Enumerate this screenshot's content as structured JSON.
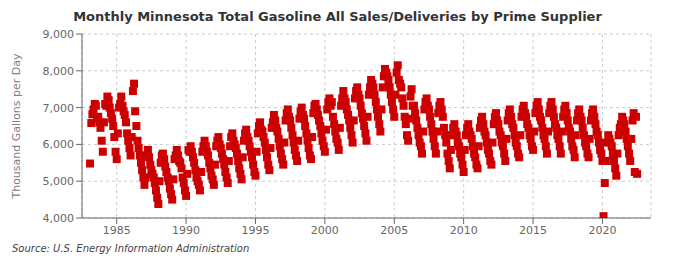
{
  "chart_data": {
    "type": "scatter",
    "title": "Monthly Minnesota Total Gasoline All Sales/Deliveries by Prime Supplier",
    "y_label": "Thousand Gallons per Day",
    "annotations": [
      "Source: U.S. Energy Information Administration"
    ],
    "color": "#CC0000",
    "marker": "square",
    "grid": true,
    "xlim": [
      1982.5,
      2023.5
    ],
    "xticks": [
      1985,
      1990,
      1995,
      2000,
      2005,
      2010,
      2015,
      2020
    ],
    "ylim": [
      4000,
      9000
    ],
    "yticks": [
      {
        "value": 4000,
        "label": "4,000"
      },
      {
        "value": 5000,
        "label": "5,000"
      },
      {
        "value": 6000,
        "label": "6,000"
      },
      {
        "value": 7000,
        "label": "7,000"
      },
      {
        "value": 8000,
        "label": "8,000"
      },
      {
        "value": 9000,
        "label": "9,000"
      }
    ],
    "x": [
      1983.08,
      1983.17,
      1983.25,
      1983.33,
      1983.42,
      1983.5,
      1983.58,
      1983.67,
      1983.75,
      1983.83,
      1983.92,
      1984.0,
      1984.08,
      1984.17,
      1984.25,
      1984.33,
      1984.42,
      1984.5,
      1984.58,
      1984.67,
      1984.75,
      1984.83,
      1984.92,
      1985.0,
      1985.08,
      1985.17,
      1985.25,
      1985.33,
      1985.42,
      1985.5,
      1985.58,
      1985.67,
      1985.75,
      1985.83,
      1985.92,
      1986.0,
      1986.08,
      1986.17,
      1986.25,
      1986.33,
      1986.42,
      1986.5,
      1986.58,
      1986.67,
      1986.75,
      1986.83,
      1986.92,
      1987.0,
      1987.08,
      1987.17,
      1987.25,
      1987.33,
      1987.42,
      1987.5,
      1987.58,
      1987.67,
      1987.75,
      1987.83,
      1987.92,
      1988.0,
      1988.08,
      1988.17,
      1988.25,
      1988.33,
      1988.42,
      1988.5,
      1988.58,
      1988.67,
      1988.75,
      1988.83,
      1988.92,
      1989.0,
      1989.08,
      1989.17,
      1989.25,
      1989.33,
      1989.42,
      1989.5,
      1989.58,
      1989.67,
      1989.75,
      1989.83,
      1989.92,
      1990.0,
      1990.08,
      1990.17,
      1990.25,
      1990.33,
      1990.42,
      1990.5,
      1990.58,
      1990.67,
      1990.75,
      1990.83,
      1990.92,
      1991.0,
      1991.08,
      1991.17,
      1991.25,
      1991.33,
      1991.42,
      1991.5,
      1991.58,
      1991.67,
      1991.75,
      1991.83,
      1991.92,
      1992.0,
      1992.08,
      1992.17,
      1992.25,
      1992.33,
      1992.42,
      1992.5,
      1992.58,
      1992.67,
      1992.75,
      1992.83,
      1992.92,
      1993.0,
      1993.08,
      1993.17,
      1993.25,
      1993.33,
      1993.42,
      1993.5,
      1993.58,
      1993.67,
      1993.75,
      1993.83,
      1993.92,
      1994.0,
      1994.08,
      1994.17,
      1994.25,
      1994.33,
      1994.42,
      1994.5,
      1994.58,
      1994.67,
      1994.75,
      1994.83,
      1994.92,
      1995.0,
      1995.08,
      1995.17,
      1995.25,
      1995.33,
      1995.42,
      1995.5,
      1995.58,
      1995.67,
      1995.75,
      1995.83,
      1995.92,
      1996.0,
      1996.08,
      1996.17,
      1996.25,
      1996.33,
      1996.42,
      1996.5,
      1996.58,
      1996.67,
      1996.75,
      1996.83,
      1996.92,
      1997.0,
      1997.08,
      1997.17,
      1997.25,
      1997.33,
      1997.42,
      1997.5,
      1997.58,
      1997.67,
      1997.75,
      1997.83,
      1997.92,
      1998.0,
      1998.08,
      1998.17,
      1998.25,
      1998.33,
      1998.42,
      1998.5,
      1998.58,
      1998.67,
      1998.75,
      1998.83,
      1998.92,
      1999.0,
      1999.08,
      1999.17,
      1999.25,
      1999.33,
      1999.42,
      1999.5,
      1999.58,
      1999.67,
      1999.75,
      1999.83,
      1999.92,
      2000.0,
      2000.08,
      2000.17,
      2000.25,
      2000.33,
      2000.42,
      2000.5,
      2000.58,
      2000.67,
      2000.75,
      2000.83,
      2000.92,
      2001.0,
      2001.08,
      2001.17,
      2001.25,
      2001.33,
      2001.42,
      2001.5,
      2001.58,
      2001.67,
      2001.75,
      2001.83,
      2001.92,
      2002.0,
      2002.08,
      2002.17,
      2002.25,
      2002.33,
      2002.42,
      2002.5,
      2002.58,
      2002.67,
      2002.75,
      2002.83,
      2002.92,
      2003.0,
      2003.08,
      2003.17,
      2003.25,
      2003.33,
      2003.42,
      2003.5,
      2003.58,
      2003.67,
      2003.75,
      2003.83,
      2003.92,
      2004.0,
      2004.08,
      2004.17,
      2004.25,
      2004.33,
      2004.42,
      2004.5,
      2004.58,
      2004.67,
      2004.75,
      2004.83,
      2004.92,
      2005.0,
      2005.08,
      2005.17,
      2005.25,
      2005.33,
      2005.42,
      2005.5,
      2005.58,
      2005.67,
      2005.75,
      2005.83,
      2005.92,
      2006.0,
      2006.08,
      2006.17,
      2006.25,
      2006.33,
      2006.42,
      2006.5,
      2006.58,
      2006.67,
      2006.75,
      2006.83,
      2006.92,
      2007.0,
      2007.08,
      2007.17,
      2007.25,
      2007.33,
      2007.42,
      2007.5,
      2007.58,
      2007.67,
      2007.75,
      2007.83,
      2007.92,
      2008.0,
      2008.08,
      2008.17,
      2008.25,
      2008.33,
      2008.42,
      2008.5,
      2008.58,
      2008.67,
      2008.75,
      2008.83,
      2008.92,
      2009.0,
      2009.08,
      2009.17,
      2009.25,
      2009.33,
      2009.42,
      2009.5,
      2009.58,
      2009.67,
      2009.75,
      2009.83,
      2009.92,
      2010.0,
      2010.08,
      2010.17,
      2010.25,
      2010.33,
      2010.42,
      2010.5,
      2010.58,
      2010.67,
      2010.75,
      2010.83,
      2010.92,
      2011.0,
      2011.08,
      2011.17,
      2011.25,
      2011.33,
      2011.42,
      2011.5,
      2011.58,
      2011.67,
      2011.75,
      2011.83,
      2011.92,
      2012.0,
      2012.08,
      2012.17,
      2012.25,
      2012.33,
      2012.42,
      2012.5,
      2012.58,
      2012.67,
      2012.75,
      2012.83,
      2012.92,
      2013.0,
      2013.08,
      2013.17,
      2013.25,
      2013.33,
      2013.42,
      2013.5,
      2013.58,
      2013.67,
      2013.75,
      2013.83,
      2013.92,
      2014.0,
      2014.08,
      2014.17,
      2014.25,
      2014.33,
      2014.42,
      2014.5,
      2014.58,
      2014.67,
      2014.75,
      2014.83,
      2014.92,
      2015.0,
      2015.08,
      2015.17,
      2015.25,
      2015.33,
      2015.42,
      2015.5,
      2015.58,
      2015.67,
      2015.75,
      2015.83,
      2015.92,
      2016.0,
      2016.08,
      2016.17,
      2016.25,
      2016.33,
      2016.42,
      2016.5,
      2016.58,
      2016.67,
      2016.75,
      2016.83,
      2016.92,
      2017.0,
      2017.08,
      2017.17,
      2017.25,
      2017.33,
      2017.42,
      2017.5,
      2017.58,
      2017.67,
      2017.75,
      2017.83,
      2017.92,
      2018.0,
      2018.08,
      2018.17,
      2018.25,
      2018.33,
      2018.42,
      2018.5,
      2018.58,
      2018.67,
      2018.75,
      2018.83,
      2018.92,
      2019.0,
      2019.08,
      2019.17,
      2019.25,
      2019.33,
      2019.42,
      2019.5,
      2019.58,
      2019.67,
      2019.75,
      2019.83,
      2019.92,
      2020.0,
      2020.08,
      2020.17,
      2020.25,
      2020.33,
      2020.42,
      2020.5,
      2020.58,
      2020.67,
      2020.75,
      2020.83,
      2020.92,
      2021.0,
      2021.08,
      2021.17,
      2021.25,
      2021.33,
      2021.42,
      2021.5,
      2021.58,
      2021.67,
      2021.75,
      2021.83,
      2021.92,
      2022.0,
      2022.08,
      2022.17,
      2022.25,
      2022.33,
      2022.42,
      2022.5
    ],
    "values": [
      5480,
      6580,
      6820,
      6950,
      7100,
      7050,
      6700,
      6750,
      6600,
      6450,
      6100,
      5800,
      6600,
      7100,
      7050,
      7300,
      7200,
      7000,
      6850,
      6700,
      6500,
      6200,
      5800,
      5600,
      6300,
      7000,
      7100,
      7300,
      7050,
      6900,
      6800,
      6600,
      6300,
      6100,
      5900,
      5700,
      6200,
      7450,
      7650,
      6900,
      6500,
      6100,
      5900,
      5700,
      5500,
      5300,
      5100,
      4900,
      5100,
      5700,
      5850,
      5650,
      5450,
      5300,
      5200,
      5100,
      4950,
      4750,
      4550,
      4380,
      5000,
      5500,
      5700,
      5750,
      5600,
      5400,
      5250,
      5100,
      5000,
      4800,
      4650,
      4500,
      5050,
      5600,
      5700,
      5850,
      5700,
      5550,
      5500,
      5350,
      5100,
      4950,
      4750,
      4600,
      5200,
      5850,
      5800,
      5950,
      5800,
      5650,
      5500,
      5300,
      5100,
      5000,
      4900,
      4750,
      5250,
      5800,
      5950,
      6100,
      5950,
      5800,
      5700,
      5500,
      5350,
      5150,
      5050,
      4900,
      5450,
      5950,
      6100,
      6200,
      6000,
      5900,
      5750,
      5600,
      5450,
      5250,
      5100,
      4950,
      5550,
      5950,
      6200,
      6300,
      6100,
      6000,
      5900,
      5750,
      5550,
      5350,
      5200,
      5050,
      5650,
      6100,
      6300,
      6400,
      6200,
      6100,
      5950,
      5800,
      5650,
      5450,
      5250,
      5150,
      5800,
      6300,
      6500,
      6600,
      6400,
      6350,
      6200,
      6050,
      5850,
      5650,
      5450,
      5300,
      5900,
      6450,
      6600,
      6800,
      6650,
      6450,
      6350,
      6150,
      5950,
      5750,
      5600,
      5450,
      6050,
      6650,
      6850,
      6950,
      6750,
      6650,
      6450,
      6250,
      6050,
      5850,
      5700,
      5550,
      6100,
      6700,
      6900,
      7000,
      6800,
      6700,
      6500,
      6300,
      6100,
      5900,
      5700,
      5600,
      6200,
      6850,
      7050,
      7100,
      6950,
      6800,
      6650,
      6500,
      6300,
      6100,
      5950,
      5800,
      6400,
      6950,
      7150,
      7250,
      7050,
      7150,
      6750,
      6550,
      6350,
      6150,
      6050,
      5850,
      6450,
      7050,
      7250,
      7450,
      7250,
      7150,
      6950,
      6800,
      6650,
      6450,
      6250,
      6050,
      6650,
      7250,
      7450,
      7550,
      7350,
      7250,
      7050,
      6850,
      6700,
      6500,
      6300,
      6100,
      6750,
      7350,
      7550,
      7750,
      7650,
      7550,
      7350,
      7150,
      6950,
      6750,
      6550,
      6350,
      6950,
      7550,
      7850,
      8050,
      7950,
      7850,
      7750,
      7550,
      7350,
      7150,
      6950,
      6750,
      7350,
      7950,
      8150,
      7750,
      7650,
      7550,
      7250,
      7050,
      6750,
      6550,
      6250,
      6100,
      6700,
      7300,
      7500,
      7050,
      7050,
      6850,
      6650,
      6450,
      6250,
      6050,
      5950,
      5750,
      6350,
      6950,
      7150,
      7250,
      7050,
      6950,
      6750,
      6550,
      6350,
      6150,
      5950,
      5750,
      6350,
      6850,
      7050,
      7150,
      6950,
      6750,
      6450,
      6250,
      6050,
      5750,
      5550,
      5350,
      5850,
      6250,
      6450,
      6550,
      6350,
      6250,
      6050,
      5950,
      5750,
      5650,
      5450,
      5250,
      5850,
      6250,
      6450,
      6550,
      6350,
      6250,
      6150,
      5950,
      5750,
      5650,
      5450,
      5350,
      5950,
      6450,
      6650,
      6750,
      6550,
      6350,
      6250,
      6050,
      5850,
      5750,
      5550,
      5450,
      6050,
      6550,
      6750,
      6850,
      6650,
      6550,
      6350,
      6250,
      6050,
      5950,
      5750,
      5550,
      6150,
      6650,
      6850,
      6950,
      6750,
      6550,
      6450,
      6250,
      6050,
      5950,
      5750,
      5650,
      6250,
      6750,
      6950,
      7050,
      6850,
      6750,
      6550,
      6450,
      6250,
      6150,
      5950,
      5850,
      6350,
      6850,
      7050,
      7150,
      6950,
      6750,
      6650,
      6450,
      6250,
      6150,
      5950,
      5750,
      6350,
      6850,
      7050,
      7150,
      6950,
      6750,
      6550,
      6450,
      6250,
      6150,
      5950,
      5750,
      6350,
      6750,
      6950,
      7050,
      6850,
      6650,
      6450,
      6350,
      6150,
      5950,
      5850,
      5650,
      6250,
      6650,
      6850,
      6950,
      6750,
      6650,
      6450,
      6250,
      6050,
      5950,
      5750,
      5650,
      6150,
      6650,
      6850,
      6950,
      6750,
      6550,
      6350,
      6250,
      6050,
      5850,
      5750,
      5550,
      4050,
      4950,
      5550,
      6050,
      6250,
      6150,
      6050,
      5950,
      5750,
      5550,
      5350,
      5150,
      5750,
      6250,
      6450,
      6550,
      6750,
      6650,
      6550,
      6350,
      6150,
      5950,
      5750,
      5550,
      6150,
      6650,
      6850,
      5250,
      6750,
      5200
    ]
  }
}
